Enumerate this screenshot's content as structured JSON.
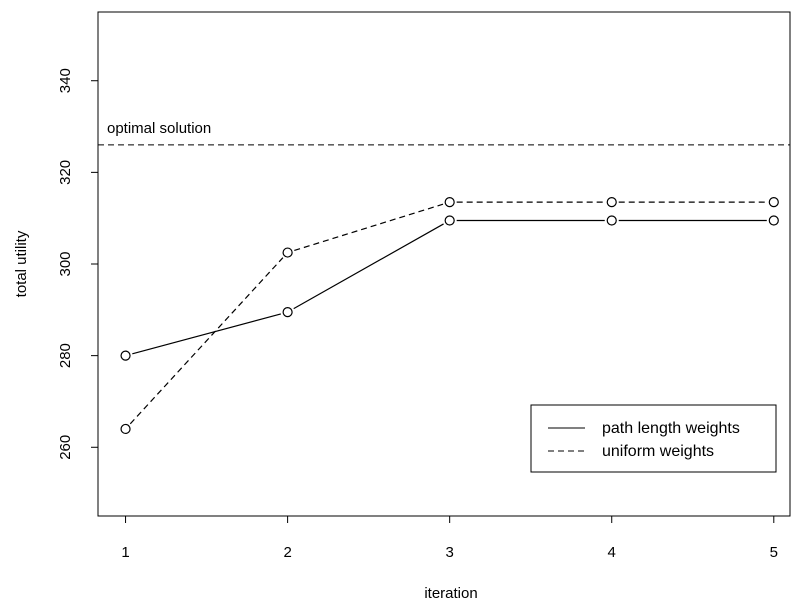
{
  "chart_data": {
    "type": "line",
    "title": "",
    "xlabel": "iteration",
    "ylabel": "total utility",
    "x": [
      1,
      2,
      3,
      4,
      5
    ],
    "xlim": [
      0.83,
      5.1
    ],
    "ylim": [
      245,
      355
    ],
    "xticks": [
      "1",
      "2",
      "3",
      "4",
      "5"
    ],
    "yticks": [
      "260",
      "280",
      "300",
      "320",
      "340"
    ],
    "series": [
      {
        "name": "path length weights",
        "values": [
          280,
          289.5,
          309.5,
          309.5,
          309.5
        ],
        "line_style": "solid",
        "marker": "open-circle"
      },
      {
        "name": "uniform weights",
        "values": [
          264,
          302.5,
          313.5,
          313.5,
          313.5
        ],
        "line_style": "dashed",
        "marker": "open-circle"
      }
    ],
    "reference_line": {
      "label": "optimal solution",
      "y": 326,
      "line_style": "dashed"
    },
    "legend_position": "bottom-right",
    "grid": false,
    "color": "#000000"
  }
}
